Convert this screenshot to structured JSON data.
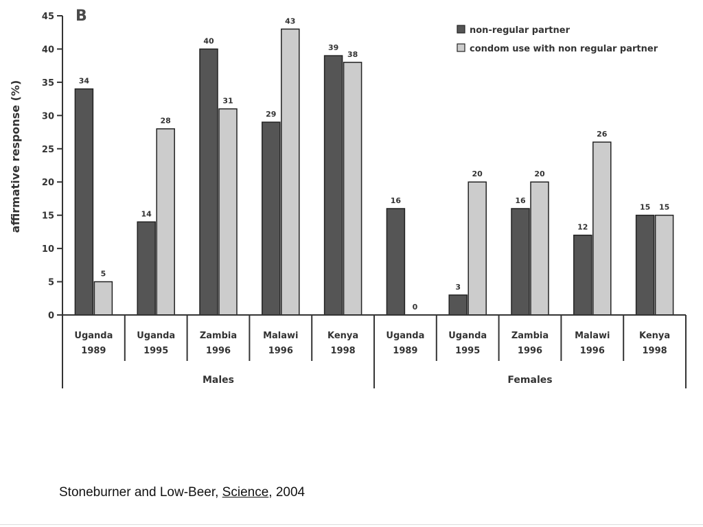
{
  "panel_letter": "B",
  "caption": {
    "authors": "Stoneburner and Low-Beer, ",
    "journal": "Science",
    "year": ", 2004"
  },
  "colors": {
    "series_1": "#555555",
    "series_2": "#cccccc",
    "stroke": "#222222"
  },
  "chart_data": {
    "type": "bar",
    "ylabel": "affirmative response (%)",
    "ylim": [
      0,
      45
    ],
    "yticks": [
      0,
      5,
      10,
      15,
      20,
      25,
      30,
      35,
      40,
      45
    ],
    "grid": false,
    "legend_position": "top-right",
    "categories": [
      [
        "Uganda",
        "1989"
      ],
      [
        "Uganda",
        "1995"
      ],
      [
        "Zambia",
        "1996"
      ],
      [
        "Malawi",
        "1996"
      ],
      [
        "Kenya",
        "1998"
      ],
      [
        "Uganda",
        "1989"
      ],
      [
        "Uganda",
        "1995"
      ],
      [
        "Zambia",
        "1996"
      ],
      [
        "Malawi",
        "1996"
      ],
      [
        "Kenya",
        "1998"
      ]
    ],
    "groups": [
      {
        "name": "Males",
        "start": 0,
        "end": 4
      },
      {
        "name": "Females",
        "start": 5,
        "end": 9
      }
    ],
    "series": [
      {
        "name": "non-regular partner",
        "values": [
          34,
          14,
          40,
          29,
          39,
          16,
          3,
          16,
          12,
          15
        ],
        "labels": [
          "34",
          "14",
          "40",
          "29",
          "39",
          "16",
          "3",
          "16",
          "12",
          "15"
        ]
      },
      {
        "name": "condom use with non regular partner",
        "values": [
          5,
          28,
          31,
          43,
          38,
          0,
          20,
          20,
          26,
          15
        ],
        "labels": [
          "5",
          "28",
          "31",
          "43",
          "38",
          "0",
          "20",
          "20",
          "26",
          "15"
        ]
      }
    ]
  }
}
